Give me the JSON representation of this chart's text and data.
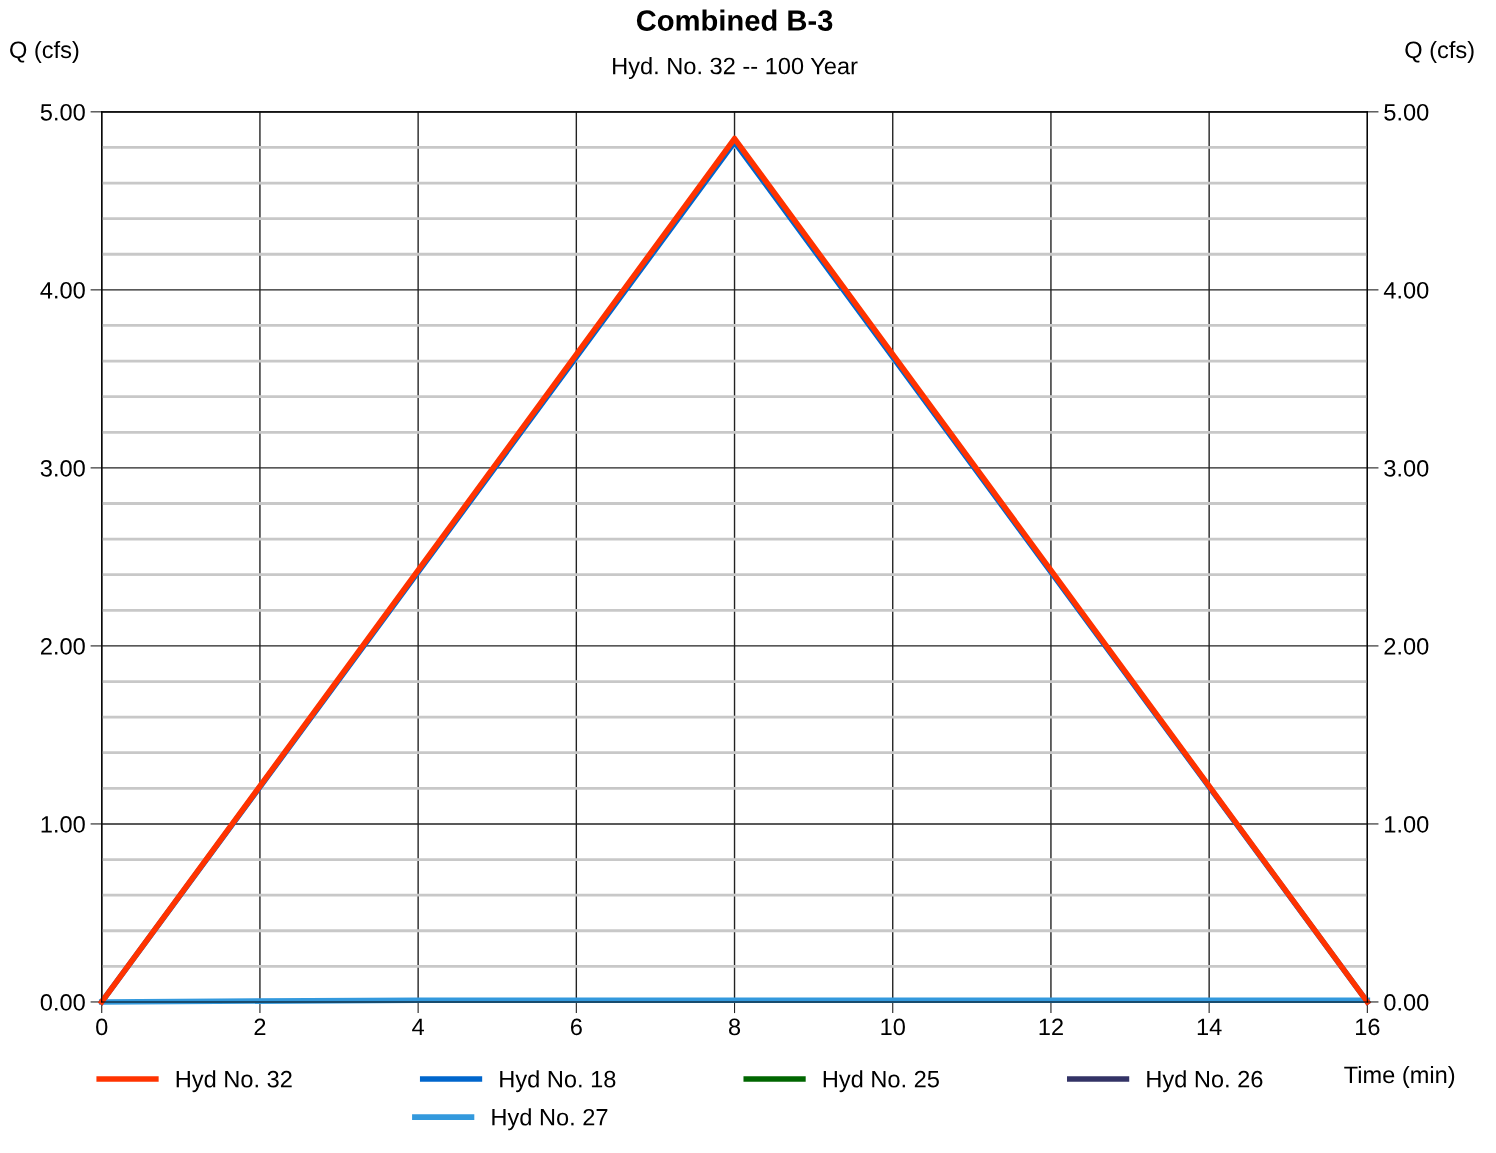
{
  "chart_data": {
    "type": "line",
    "title": "Combined B-3",
    "subtitle": "Hyd. No. 32 -- 100 Year",
    "xlabel": "Time (min)",
    "ylabel": "Q (cfs)",
    "y2label": "Q (cfs)",
    "xlim": [
      0,
      16
    ],
    "xticks": [
      0,
      2,
      4,
      6,
      8,
      10,
      12,
      14,
      16
    ],
    "ylim": [
      0,
      5
    ],
    "yticks": [
      {
        "value": 0,
        "label": "0.00"
      },
      {
        "value": 0.2,
        "label": null
      },
      {
        "value": 0.4,
        "label": null
      },
      {
        "value": 0.6,
        "label": null
      },
      {
        "value": 0.8,
        "label": null
      },
      {
        "value": 1,
        "label": "1.00"
      },
      {
        "value": 1.2,
        "label": null
      },
      {
        "value": 1.4,
        "label": null
      },
      {
        "value": 1.6,
        "label": null
      },
      {
        "value": 1.8,
        "label": null
      },
      {
        "value": 2,
        "label": "2.00"
      },
      {
        "value": 2.2,
        "label": null
      },
      {
        "value": 2.4,
        "label": null
      },
      {
        "value": 2.6,
        "label": null
      },
      {
        "value": 2.8,
        "label": null
      },
      {
        "value": 3,
        "label": "3.00"
      },
      {
        "value": 3.2,
        "label": null
      },
      {
        "value": 3.4,
        "label": null
      },
      {
        "value": 3.6,
        "label": null
      },
      {
        "value": 3.8,
        "label": null
      },
      {
        "value": 4,
        "label": "4.00"
      },
      {
        "value": 4.2,
        "label": null
      },
      {
        "value": 4.4,
        "label": null
      },
      {
        "value": 4.6,
        "label": null
      },
      {
        "value": 4.8,
        "label": null
      },
      {
        "value": 5,
        "label": "5.00"
      }
    ],
    "y2lim": [
      0,
      5
    ],
    "y2ticks": [
      {
        "value": 0,
        "label": "0.00"
      },
      {
        "value": 1,
        "label": "1.00"
      },
      {
        "value": 2,
        "label": "2.00"
      },
      {
        "value": 3,
        "label": "3.00"
      },
      {
        "value": 4,
        "label": "4.00"
      },
      {
        "value": 5,
        "label": "5.00"
      }
    ],
    "grid": true,
    "legend": "bottom",
    "series": [
      {
        "name": "Hyd No. 32",
        "color": "#ff3300",
        "x": [
          0,
          8,
          16
        ],
        "values": [
          0,
          4.85,
          0
        ]
      },
      {
        "name": "Hyd No. 18",
        "color": "#0066cc",
        "x": [
          0,
          8,
          16
        ],
        "values": [
          0,
          4.83,
          0
        ]
      },
      {
        "name": "Hyd No. 25",
        "color": "#006600"
      },
      {
        "name": "Hyd No. 26",
        "color": "#333366"
      },
      {
        "name": "Hyd No. 27",
        "color": "#3399dd",
        "x": [
          0,
          4,
          16
        ],
        "values": [
          0,
          0.01,
          0.01
        ]
      }
    ]
  }
}
